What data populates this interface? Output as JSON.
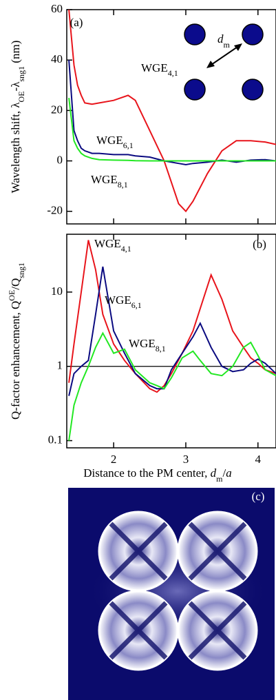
{
  "chart_data": [
    {
      "type": "line",
      "label": "(a)",
      "ylabel": [
        {
          "text": "Wavelength shift, λ",
          "style": "normal"
        },
        {
          "text": "OE",
          "style": "sub"
        },
        {
          "text": "-λ",
          "style": "normal"
        },
        {
          "text": "sng1",
          "style": "sub"
        },
        {
          "text": " (nm)",
          "style": "normal"
        }
      ],
      "x": [
        1.38,
        1.45,
        1.5,
        1.55,
        1.6,
        1.7,
        1.8,
        2.0,
        2.2,
        2.3,
        2.5,
        2.7,
        2.9,
        3.0,
        3.1,
        3.3,
        3.5,
        3.7,
        3.9,
        4.1,
        4.25
      ],
      "series": [
        {
          "name": "WGE",
          "subscript": "4,1",
          "color": "#e8141b",
          "values": [
            60,
            38,
            30,
            26,
            23,
            22.5,
            23,
            24,
            26,
            24,
            12,
            0,
            -17,
            -20,
            -16,
            -5,
            4,
            8,
            8,
            7.5,
            6.5
          ]
        },
        {
          "name": "WGE",
          "subscript": "6,1",
          "color": "#0a0a80",
          "values": [
            40,
            12,
            8,
            5,
            4,
            3,
            3,
            2.5,
            2.5,
            2,
            1.5,
            0,
            -1,
            -1.5,
            -1,
            -0.5,
            0.3,
            -0.5,
            0.3,
            0.5,
            0
          ]
        },
        {
          "name": "WGE",
          "subscript": "8,1",
          "color": "#22e822",
          "values": [
            25,
            8,
            5,
            3,
            2,
            1,
            0.5,
            0.3,
            0.2,
            0.1,
            0,
            0,
            0,
            0,
            0,
            0,
            0,
            0,
            0,
            0,
            0
          ]
        }
      ],
      "xlim": [
        1.35,
        4.25
      ],
      "xticks": [
        2,
        3,
        4
      ],
      "ylim": [
        -25,
        60
      ],
      "yticks": [
        60,
        40,
        20,
        0,
        -20
      ],
      "log": false,
      "annotation": [
        {
          "text": "d",
          "style": "italic"
        },
        {
          "text": "m",
          "style": "sub"
        }
      ]
    },
    {
      "type": "line",
      "label": "(b)",
      "ylabel": [
        {
          "text": "Q-factor enhancement, Q",
          "style": "normal"
        },
        {
          "text": "OE",
          "style": "sup"
        },
        {
          "text": "/Q",
          "style": "normal"
        },
        {
          "text": "sng1",
          "style": "sub"
        }
      ],
      "xlabel": [
        {
          "text": "Distance to the PM center, ",
          "style": "normal"
        },
        {
          "text": "d",
          "style": "italic"
        },
        {
          "text": "m",
          "style": "sub"
        },
        {
          "text": "/",
          "style": "normal"
        },
        {
          "text": "a",
          "style": "italic"
        }
      ],
      "x": [
        1.38,
        1.45,
        1.55,
        1.65,
        1.75,
        1.85,
        2.0,
        2.15,
        2.3,
        2.5,
        2.6,
        2.7,
        2.8,
        2.95,
        3.1,
        3.2,
        3.35,
        3.5,
        3.65,
        3.8,
        3.9,
        4.0,
        4.1,
        4.25
      ],
      "series": [
        {
          "name": "WGE",
          "subscript": "4,1",
          "color": "#e8141b",
          "values": [
            0.6,
            2,
            10,
            50,
            20,
            5,
            2,
            1.2,
            0.8,
            0.5,
            0.45,
            0.55,
            0.8,
            1.5,
            3,
            6,
            17,
            8,
            3,
            1.8,
            1.3,
            1.1,
            0.9,
            0.8
          ]
        },
        {
          "name": "WGE",
          "subscript": "6,1",
          "color": "#0a0a80",
          "values": [
            0.4,
            0.8,
            1,
            1.2,
            5,
            22,
            3,
            1.5,
            0.8,
            0.55,
            0.5,
            0.5,
            0.9,
            1.5,
            2.5,
            3.8,
            1.8,
            1,
            0.85,
            0.9,
            1.1,
            1.25,
            1.1,
            0.8
          ]
        },
        {
          "name": "WGE",
          "subscript": "8,1",
          "color": "#22e822",
          "values": [
            0.1,
            0.3,
            0.6,
            1,
            1.8,
            2.8,
            1.5,
            1.7,
            0.9,
            0.6,
            0.55,
            0.5,
            0.7,
            1.3,
            1.6,
            1.2,
            0.8,
            0.75,
            1,
            1.8,
            2.1,
            1.4,
            0.9,
            0.75
          ]
        }
      ],
      "xlim": [
        1.35,
        4.25
      ],
      "xticks": [
        2,
        3,
        4
      ],
      "ylim": [
        0.08,
        60
      ],
      "yticks": [
        0.1,
        1,
        10
      ],
      "log": true,
      "reference_line": 1
    }
  ],
  "image": {
    "label": "(c)"
  }
}
